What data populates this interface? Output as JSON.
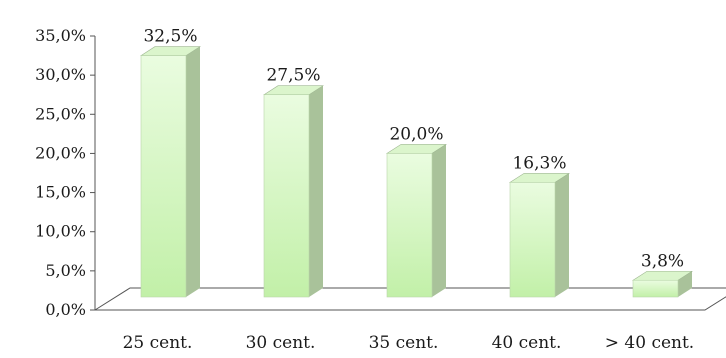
{
  "chart_data": {
    "type": "bar",
    "style": "3d-column",
    "categories": [
      "25 cent.",
      "30 cent.",
      "35 cent.",
      "40 cent.",
      "> 40 cent."
    ],
    "values": [
      32.5,
      27.5,
      20.0,
      16.3,
      3.8
    ],
    "data_labels": [
      "32,5%",
      "27,5%",
      "20,0%",
      "16,3%",
      "3,8%"
    ],
    "y_ticks": [
      0,
      5,
      10,
      15,
      20,
      25,
      30,
      35
    ],
    "y_tick_labels": [
      "0,0%",
      "5,0%",
      "10,0%",
      "15,0%",
      "20,0%",
      "25,0%",
      "30,0%",
      "35,0%"
    ],
    "ylim": [
      0,
      35
    ],
    "title": "",
    "xlabel": "",
    "ylabel": "",
    "grid": false,
    "legend": "none",
    "colors": {
      "bar_front_top": "#eafce0",
      "bar_front_bottom": "#c2f0a8",
      "bar_side": "#a9c29a",
      "bar_top": "#dbf5cc",
      "floor": "#ffffff",
      "axis": "#555555"
    }
  }
}
